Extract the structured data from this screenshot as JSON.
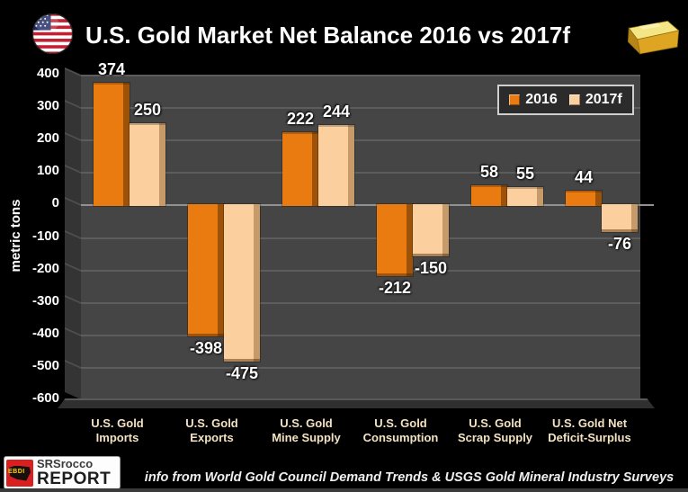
{
  "header": {
    "title": "U.S. Gold Market Net Balance 2016 vs 2017f"
  },
  "icons": {
    "flag": "us-flag-icon",
    "gold": "gold-bar-icon"
  },
  "chart_data": {
    "type": "bar",
    "title": "U.S. Gold Market Net Balance 2016 vs 2017f",
    "xlabel": "",
    "ylabel": "metric tons",
    "ylim": [
      -600,
      400
    ],
    "ytick_interval": 100,
    "grid": true,
    "legend_position": "top-right",
    "background_color": "#000000",
    "plot_background_color": "#454545",
    "categories": [
      {
        "line1": "U.S. Gold",
        "line2": "Imports"
      },
      {
        "line1": "U.S. Gold",
        "line2": "Exports"
      },
      {
        "line1": "U.S. Gold",
        "line2": "Mine Supply"
      },
      {
        "line1": "U.S. Gold",
        "line2": "Consumption"
      },
      {
        "line1": "U.S. Gold",
        "line2": "Scrap Supply"
      },
      {
        "line1": "U.S. Gold Net",
        "line2": "Deficit-Surplus"
      }
    ],
    "series": [
      {
        "name": "2016",
        "color": "#EA7B11",
        "edge_color": "#9C5208",
        "values": [
          374,
          -398,
          222,
          -212,
          58,
          44
        ]
      },
      {
        "name": "2017f",
        "color": "#FCCF9E",
        "edge_color": "#C79A6A",
        "values": [
          250,
          -475,
          244,
          -150,
          55,
          -76
        ]
      }
    ]
  },
  "footer": {
    "credit": "info from World Gold Council Demand Trends & USGS Gold Mineral Industry Surveys",
    "logo": {
      "badge": "EBDI",
      "line1": "SRSrocco",
      "line2": "REPORT"
    }
  }
}
